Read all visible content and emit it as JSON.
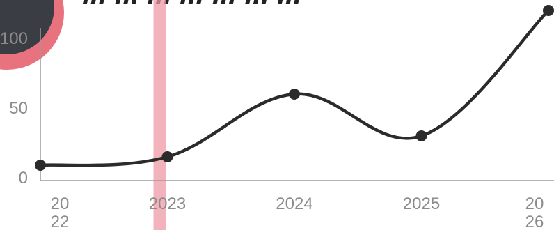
{
  "title": "... ... ... ... ... ... ...",
  "colors": {
    "line": "#2b2b2b",
    "axis": "#9a9a9a",
    "tick_text": "#8b8b8b",
    "highlight_band": "#ef9aa6",
    "badge_outer": "#e8737f",
    "badge_inner": "#3b3d44"
  },
  "chart_data": {
    "type": "line",
    "title": "",
    "xlabel": "",
    "ylabel": "",
    "x": [
      "2022",
      "2023",
      "2024",
      "2025",
      "2026"
    ],
    "x_tick_labels": [
      "20\n22",
      "2023",
      "2024",
      "2025",
      "20\n26"
    ],
    "y_ticks": [
      0,
      50,
      100
    ],
    "y_tick_labels": [
      "0",
      "50",
      "100"
    ],
    "ylim": [
      0,
      125
    ],
    "series": [
      {
        "values": [
          9,
          15,
          60,
          30,
          120
        ]
      }
    ],
    "highlight_x": "2023",
    "grid": false,
    "smooth": true
  }
}
